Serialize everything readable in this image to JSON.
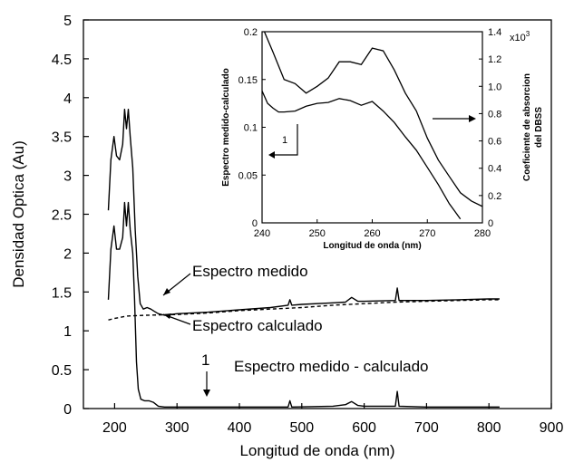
{
  "chart_data": [
    {
      "type": "line",
      "xlabel": "Longitud de onda (nm)",
      "ylabel": "Densidad Optica (Au)",
      "xlim": [
        150,
        900
      ],
      "ylim": [
        0,
        5
      ],
      "xticks": [
        200,
        300,
        400,
        500,
        600,
        700,
        800,
        900
      ],
      "yticks": [
        0,
        0.5,
        1,
        1.5,
        2,
        2.5,
        3,
        3.5,
        4,
        4.5,
        5
      ],
      "grid": false,
      "series": [
        {
          "name": "Espectro medido",
          "style": "solid",
          "points": [
            [
              190,
              2.55
            ],
            [
              194,
              3.2
            ],
            [
              199,
              3.5
            ],
            [
              203,
              3.25
            ],
            [
              208,
              3.2
            ],
            [
              213,
              3.4
            ],
            [
              216,
              3.85
            ],
            [
              219,
              3.6
            ],
            [
              222,
              3.85
            ],
            [
              225,
              3.5
            ],
            [
              229,
              3.1
            ],
            [
              233,
              2.3
            ],
            [
              237,
              1.7
            ],
            [
              241,
              1.35
            ],
            [
              246,
              1.28
            ],
            [
              252,
              1.3
            ],
            [
              258,
              1.28
            ],
            [
              264,
              1.25
            ],
            [
              270,
              1.22
            ],
            [
              280,
              1.2
            ],
            [
              300,
              1.22
            ],
            [
              350,
              1.24
            ],
            [
              400,
              1.27
            ],
            [
              450,
              1.3
            ],
            [
              478,
              1.33
            ],
            [
              481,
              1.4
            ],
            [
              484,
              1.33
            ],
            [
              500,
              1.34
            ],
            [
              550,
              1.36
            ],
            [
              570,
              1.37
            ],
            [
              580,
              1.43
            ],
            [
              590,
              1.38
            ],
            [
              600,
              1.38
            ],
            [
              650,
              1.39
            ],
            [
              653,
              1.55
            ],
            [
              656,
              1.39
            ],
            [
              700,
              1.39
            ],
            [
              750,
              1.4
            ],
            [
              800,
              1.41
            ],
            [
              817,
              1.41
            ]
          ]
        },
        {
          "name": "Espectro calculado",
          "style": "dashed",
          "points": [
            [
              190,
              1.14
            ],
            [
              200,
              1.16
            ],
            [
              220,
              1.19
            ],
            [
              250,
              1.2
            ],
            [
              300,
              1.21
            ],
            [
              350,
              1.23
            ],
            [
              400,
              1.26
            ],
            [
              450,
              1.28
            ],
            [
              500,
              1.3
            ],
            [
              550,
              1.33
            ],
            [
              600,
              1.35
            ],
            [
              650,
              1.37
            ],
            [
              700,
              1.38
            ],
            [
              750,
              1.39
            ],
            [
              800,
              1.4
            ],
            [
              817,
              1.4
            ]
          ]
        },
        {
          "name": "Espectro medido - calculado",
          "style": "solid",
          "points": [
            [
              190,
              1.4
            ],
            [
              194,
              2.05
            ],
            [
              199,
              2.35
            ],
            [
              203,
              2.05
            ],
            [
              208,
              2.05
            ],
            [
              213,
              2.2
            ],
            [
              216,
              2.65
            ],
            [
              219,
              2.35
            ],
            [
              222,
              2.65
            ],
            [
              225,
              2.3
            ],
            [
              229,
              2.0
            ],
            [
              232,
              1.4
            ],
            [
              235,
              0.6
            ],
            [
              238,
              0.25
            ],
            [
              242,
              0.12
            ],
            [
              248,
              0.1
            ],
            [
              255,
              0.1
            ],
            [
              262,
              0.08
            ],
            [
              270,
              0.03
            ],
            [
              280,
              0.02
            ],
            [
              300,
              0.02
            ],
            [
              350,
              0.02
            ],
            [
              400,
              0.02
            ],
            [
              478,
              0.02
            ],
            [
              481,
              0.1
            ],
            [
              484,
              0.02
            ],
            [
              550,
              0.03
            ],
            [
              570,
              0.05
            ],
            [
              580,
              0.09
            ],
            [
              590,
              0.04
            ],
            [
              600,
              0.03
            ],
            [
              650,
              0.03
            ],
            [
              653,
              0.22
            ],
            [
              656,
              0.03
            ],
            [
              700,
              0.02
            ],
            [
              750,
              0.02
            ],
            [
              800,
              0.02
            ],
            [
              817,
              0.02
            ]
          ]
        }
      ],
      "annotations": {
        "measured": "Espectro medido",
        "calculated": "Espectro calculado",
        "difference": "Espectro medido - calculado",
        "marker": "1"
      }
    },
    {
      "type": "line",
      "xlabel": "Longitud de onda (nm)",
      "ylabel_left": "Espectro medido-calculado",
      "ylabel_right_line1": "Coeficiente de absorcion",
      "ylabel_right_line2": "del DBSS",
      "right_multiplier": "x10",
      "right_multiplier_exp": "3",
      "xlim": [
        240,
        280
      ],
      "ylim_left": [
        0,
        0.2
      ],
      "ylim_right": [
        0,
        1.4
      ],
      "xticks": [
        240,
        250,
        260,
        270,
        280
      ],
      "yticks_left": [
        0,
        0.05,
        0.1,
        0.15,
        0.2
      ],
      "yticks_right": [
        0,
        0.2,
        0.4,
        0.6,
        0.8,
        1.0,
        1.2,
        1.4
      ],
      "grid": false,
      "series": [
        {
          "axis": "left",
          "points": [
            [
              240,
              0.138
            ],
            [
              241,
              0.125
            ],
            [
              242,
              0.12
            ],
            [
              243,
              0.116
            ],
            [
              244,
              0.116
            ],
            [
              246,
              0.117
            ],
            [
              248,
              0.122
            ],
            [
              250,
              0.125
            ],
            [
              252,
              0.126
            ],
            [
              254,
              0.13
            ],
            [
              256,
              0.128
            ],
            [
              258,
              0.123
            ],
            [
              260,
              0.127
            ],
            [
              262,
              0.117
            ],
            [
              264,
              0.105
            ],
            [
              266,
              0.09
            ],
            [
              268,
              0.076
            ],
            [
              270,
              0.058
            ],
            [
              272,
              0.04
            ],
            [
              274,
              0.02
            ],
            [
              275,
              0.012
            ],
            [
              276,
              0.004
            ]
          ]
        },
        {
          "axis": "right",
          "points": [
            [
              240,
              1.44
            ],
            [
              242,
              1.25
            ],
            [
              244,
              1.05
            ],
            [
              246,
              1.02
            ],
            [
              248,
              0.95
            ],
            [
              250,
              1.0
            ],
            [
              252,
              1.06
            ],
            [
              254,
              1.18
            ],
            [
              256,
              1.18
            ],
            [
              258,
              1.16
            ],
            [
              260,
              1.28
            ],
            [
              262,
              1.26
            ],
            [
              264,
              1.12
            ],
            [
              266,
              0.95
            ],
            [
              268,
              0.82
            ],
            [
              270,
              0.62
            ],
            [
              272,
              0.46
            ],
            [
              274,
              0.34
            ],
            [
              276,
              0.22
            ],
            [
              278,
              0.16
            ],
            [
              280,
              0.12
            ]
          ]
        }
      ],
      "annotations": {
        "marker": "1"
      }
    }
  ]
}
